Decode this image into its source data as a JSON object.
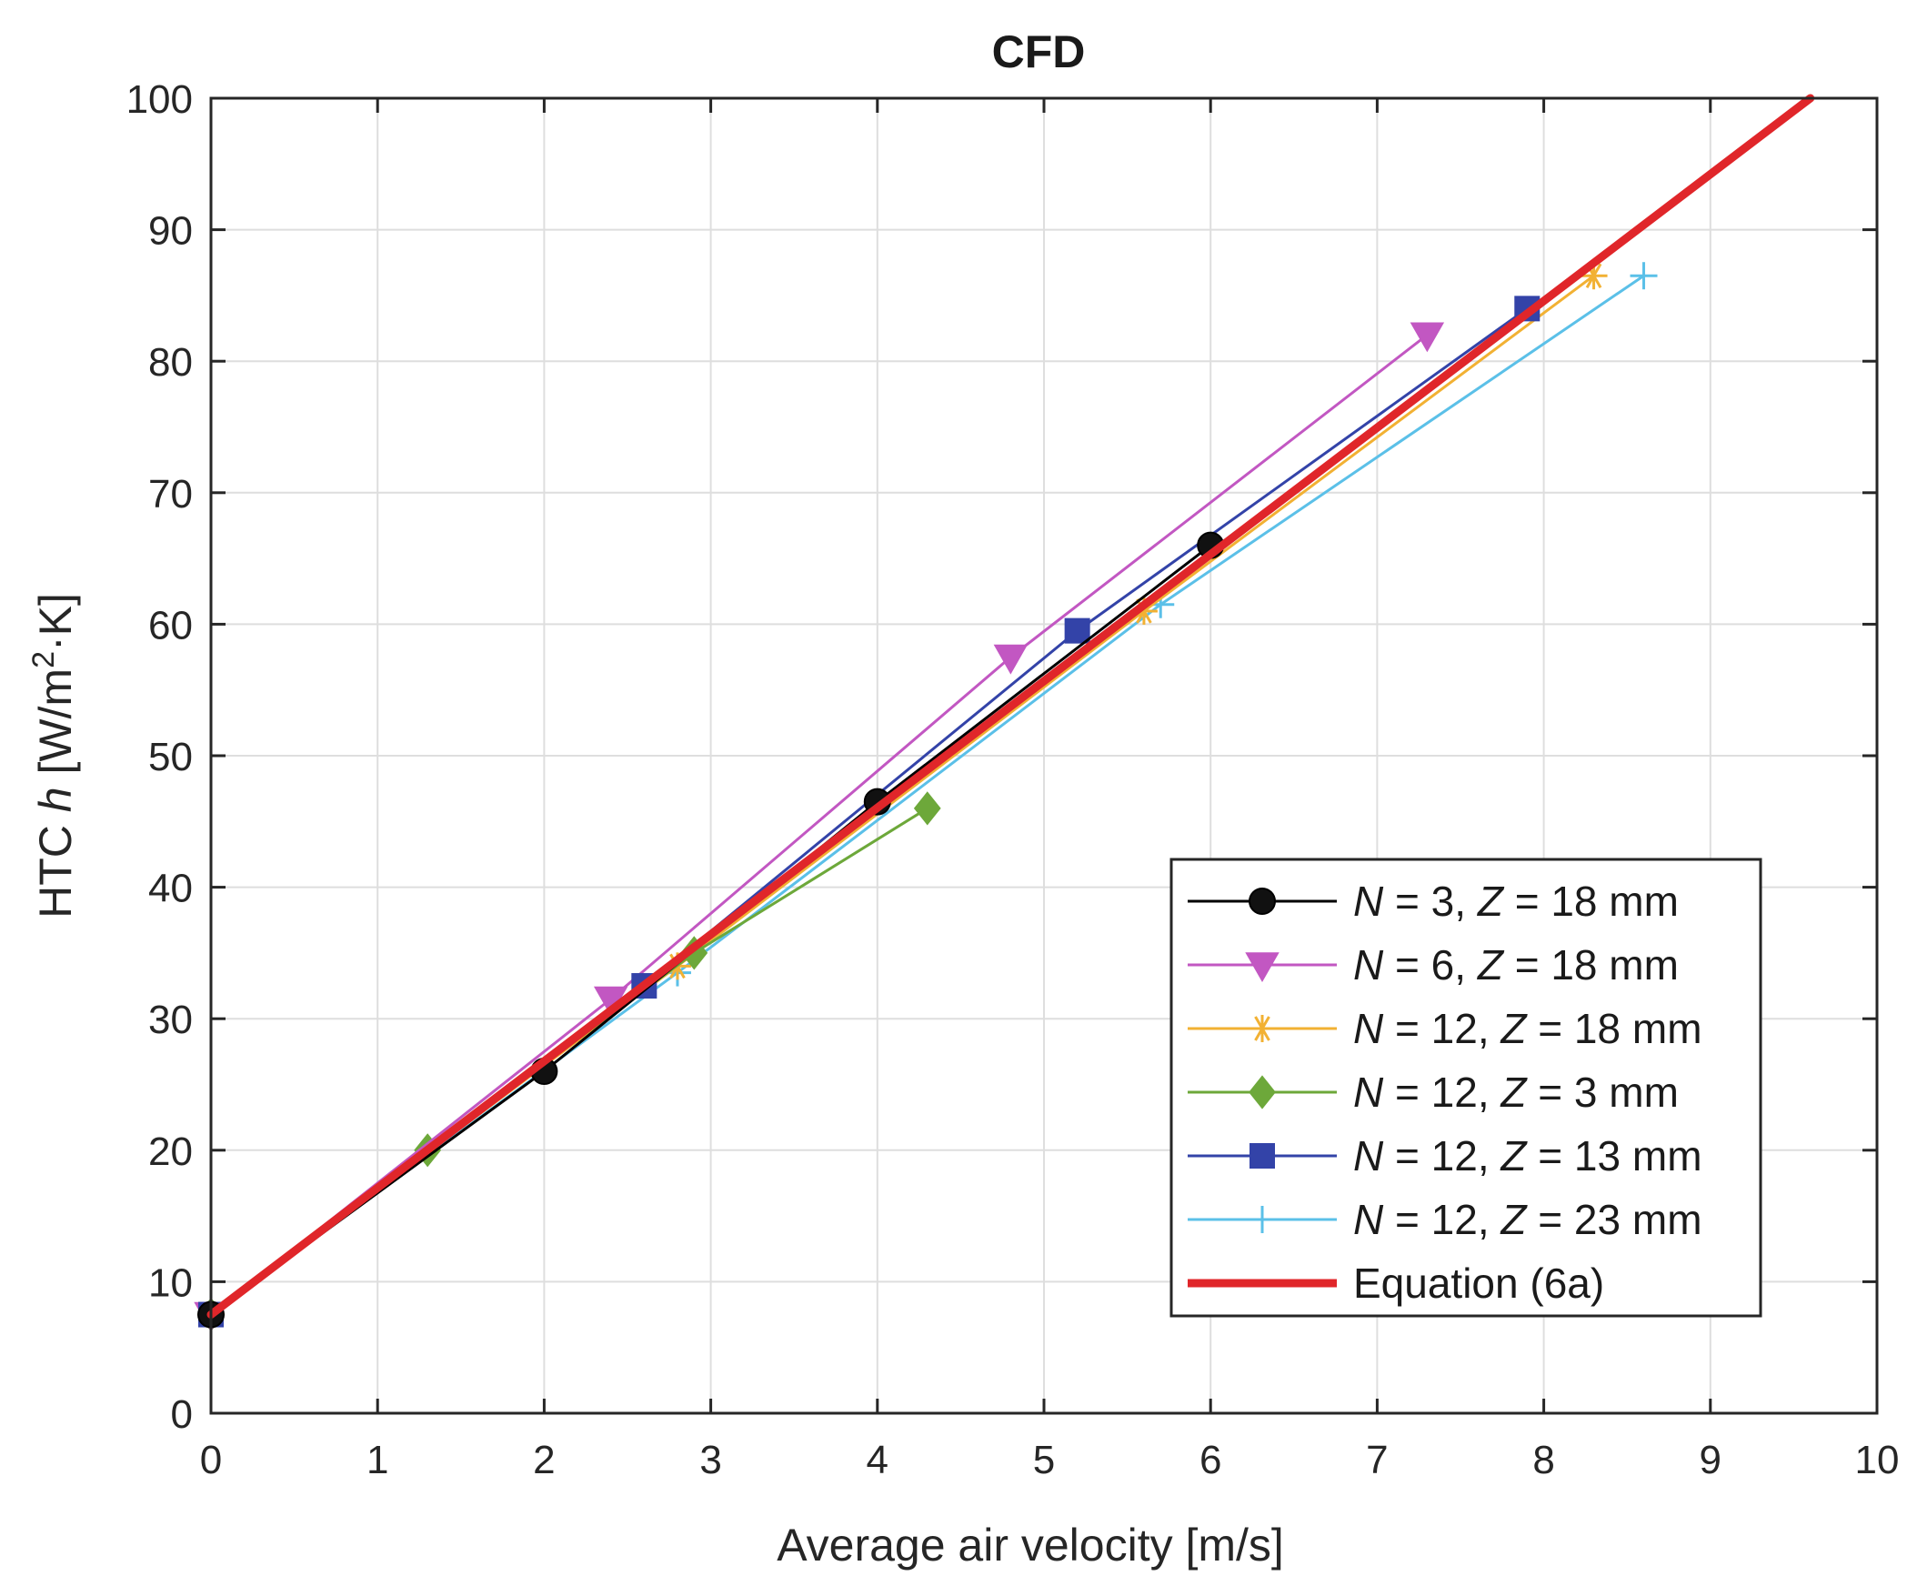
{
  "chart_data": {
    "type": "line",
    "title": "CFD",
    "xlabel": "Average air velocity [m/s]",
    "ylabel": "HTC  h [W/m²·K]",
    "ylabel_parts": {
      "prefix": "HTC  ",
      "var": "h",
      "unit_a": " [W/m",
      "sup": "2",
      "unit_b": "·K]"
    },
    "xlim": [
      0,
      10
    ],
    "ylim": [
      0,
      100
    ],
    "x_ticks": [
      "0",
      "1",
      "2",
      "3",
      "4",
      "5",
      "6",
      "7",
      "8",
      "9",
      "10"
    ],
    "y_ticks": [
      "0",
      "10",
      "20",
      "30",
      "40",
      "50",
      "60",
      "70",
      "80",
      "90",
      "100"
    ],
    "grid": true,
    "legend_position": "bottom-right",
    "series": [
      {
        "name": "N = 3,  Z = 18 mm",
        "N": "3,",
        "Z": "18 mm",
        "marker": "circle",
        "color": "#000000",
        "x": [
          0,
          2,
          4,
          6
        ],
        "y": [
          7.5,
          26,
          46.5,
          66
        ]
      },
      {
        "name": "N = 6,  Z = 18 mm",
        "N": "6,",
        "Z": "18 mm",
        "marker": "triangle-down",
        "color": "#c257c2",
        "x": [
          0,
          2.4,
          4.8,
          7.3
        ],
        "y": [
          7.5,
          31.5,
          57.5,
          82
        ]
      },
      {
        "name": "N = 12,  Z = 18 mm",
        "N": "12,",
        "Z": "18 mm",
        "marker": "asterisk",
        "color": "#f2b133",
        "x": [
          0,
          2.8,
          5.6,
          8.3
        ],
        "y": [
          7.5,
          34,
          61,
          86.5
        ]
      },
      {
        "name": "N = 12,  Z = 3 mm",
        "N": "12,",
        "Z": "3 mm",
        "marker": "diamond",
        "color": "#6da83a",
        "x": [
          0,
          1.3,
          2.9,
          4.3
        ],
        "y": [
          7.5,
          20,
          35,
          46
        ]
      },
      {
        "name": "N = 12,  Z = 13 mm",
        "N": "12,",
        "Z": "13 mm",
        "marker": "square",
        "color": "#3343a8",
        "x": [
          0,
          2.6,
          5.2,
          7.9
        ],
        "y": [
          7.5,
          32.5,
          59.5,
          84
        ]
      },
      {
        "name": "N = 12,  Z = 23 mm",
        "N": "12,",
        "Z": "23 mm",
        "marker": "plus",
        "color": "#5bc0e8",
        "x": [
          0,
          2.8,
          5.7,
          8.6
        ],
        "y": [
          7.5,
          33.5,
          61.5,
          86.5
        ]
      },
      {
        "name": "Equation (6a)",
        "marker": "none",
        "color": "#e0262a",
        "x": [
          0,
          9.6
        ],
        "y": [
          7.5,
          100
        ]
      }
    ]
  }
}
